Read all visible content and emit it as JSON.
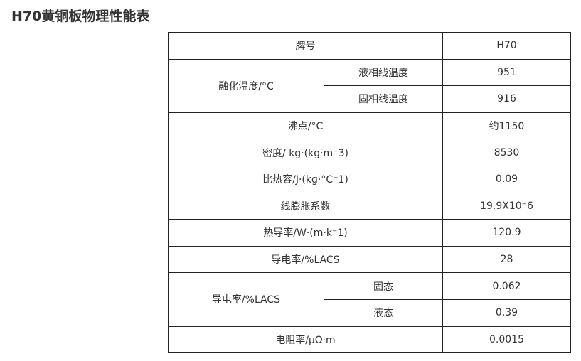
{
  "title": "H70黄铜板物理性能表",
  "table": {
    "header": {
      "label": "牌号",
      "value": "H70"
    },
    "melting": {
      "label": "融化温度/°C",
      "rows": [
        {
          "label": "液相线温度",
          "value": "951"
        },
        {
          "label": "固相线温度",
          "value": "916"
        }
      ]
    },
    "rows1": [
      {
        "label": "沸点/°C",
        "value": "约1150"
      },
      {
        "label": "密度/ kg·(kg·m⁻3)",
        "value": "8530"
      },
      {
        "label": "比热容/J·(kg·°C⁻1)",
        "value": "0.09"
      },
      {
        "label": "线膨胀系数",
        "value": "19.9X10⁻6"
      },
      {
        "label": "热导率/W·(m·k⁻1)",
        "value": "120.9"
      },
      {
        "label": "导电率/%LACS",
        "value": "28"
      }
    ],
    "conduct": {
      "label": "导电率/%LACS",
      "rows": [
        {
          "label": "固态",
          "value": "0.062"
        },
        {
          "label": "液态",
          "value": "0.39"
        }
      ]
    },
    "last": {
      "label": "电阻率/μΩ·m",
      "value": "0.0015"
    }
  }
}
